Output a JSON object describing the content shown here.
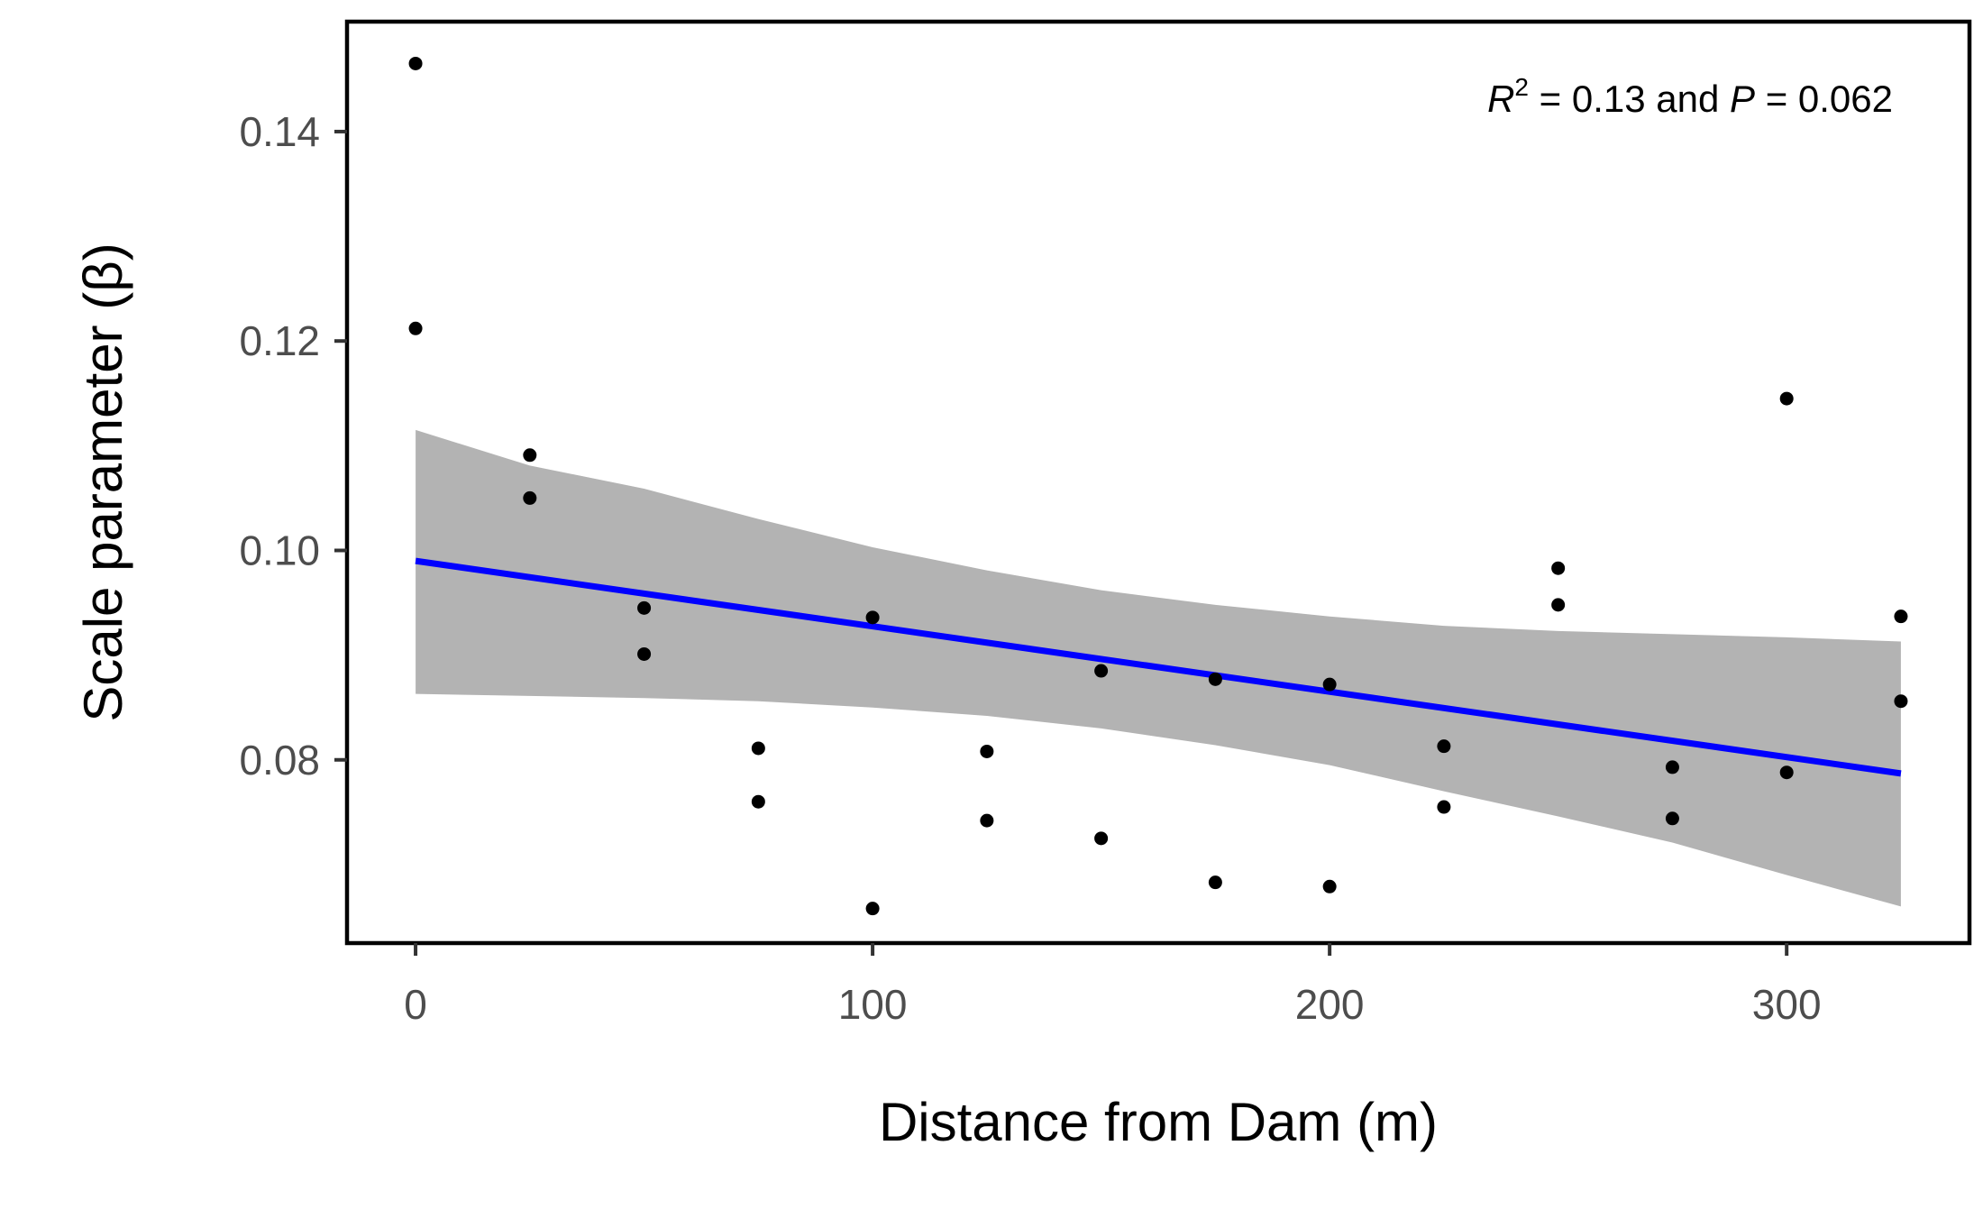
{
  "chart_data": {
    "type": "scatter",
    "title": "",
    "xlabel": "Distance from Dam (m)",
    "ylabel": "Scale parameter (β)",
    "xlim": [
      -15,
      340
    ],
    "ylim": [
      0.0625,
      0.1505
    ],
    "x_ticks": [
      {
        "value": 0,
        "label": "0"
      },
      {
        "value": 100,
        "label": "100"
      },
      {
        "value": 200,
        "label": "200"
      },
      {
        "value": 300,
        "label": "300"
      }
    ],
    "y_ticks": [
      {
        "value": 0.08,
        "label": "0.08"
      },
      {
        "value": 0.1,
        "label": "0.10"
      },
      {
        "value": 0.12,
        "label": "0.12"
      },
      {
        "value": 0.14,
        "label": "0.14"
      }
    ],
    "grid": false,
    "annotation": {
      "r_symbol": "R",
      "r_exponent": "2",
      "r_value": " = 0.13 and ",
      "p_symbol": "P",
      "p_value": " = 0.062",
      "placement": "top-right"
    },
    "points": [
      {
        "x": 0,
        "y": 0.1465
      },
      {
        "x": 0,
        "y": 0.1212
      },
      {
        "x": 25,
        "y": 0.1091
      },
      {
        "x": 25,
        "y": 0.105
      },
      {
        "x": 50,
        "y": 0.0945
      },
      {
        "x": 50,
        "y": 0.0901
      },
      {
        "x": 75,
        "y": 0.0811
      },
      {
        "x": 75,
        "y": 0.076
      },
      {
        "x": 100,
        "y": 0.0936
      },
      {
        "x": 100,
        "y": 0.0658
      },
      {
        "x": 125,
        "y": 0.0808
      },
      {
        "x": 125,
        "y": 0.0742
      },
      {
        "x": 150,
        "y": 0.0885
      },
      {
        "x": 150,
        "y": 0.0725
      },
      {
        "x": 175,
        "y": 0.0877
      },
      {
        "x": 175,
        "y": 0.0683
      },
      {
        "x": 200,
        "y": 0.0872
      },
      {
        "x": 200,
        "y": 0.0679
      },
      {
        "x": 225,
        "y": 0.0813
      },
      {
        "x": 225,
        "y": 0.0755
      },
      {
        "x": 250,
        "y": 0.0983
      },
      {
        "x": 250,
        "y": 0.0948
      },
      {
        "x": 275,
        "y": 0.0793
      },
      {
        "x": 275,
        "y": 0.0744
      },
      {
        "x": 300,
        "y": 0.1145
      },
      {
        "x": 300,
        "y": 0.0788
      },
      {
        "x": 325,
        "y": 0.0937
      },
      {
        "x": 325,
        "y": 0.0856
      }
    ],
    "fit_line": {
      "color": "#0000ff",
      "x": [
        0,
        325
      ],
      "y": [
        0.099,
        0.0787
      ]
    },
    "confidence_band": {
      "color": "#b3b3b3",
      "x": [
        0,
        25,
        50,
        75,
        100,
        125,
        150,
        175,
        200,
        225,
        250,
        275,
        300,
        325
      ],
      "upper": [
        0.1115,
        0.1081,
        0.1059,
        0.103,
        0.1003,
        0.0981,
        0.0962,
        0.0948,
        0.0937,
        0.0928,
        0.0923,
        0.092,
        0.0917,
        0.0913
      ],
      "lower": [
        0.0863,
        0.0861,
        0.0859,
        0.0856,
        0.085,
        0.0842,
        0.083,
        0.0814,
        0.0795,
        0.077,
        0.0746,
        0.0721,
        0.069,
        0.066
      ]
    },
    "point_color": "#000000"
  }
}
